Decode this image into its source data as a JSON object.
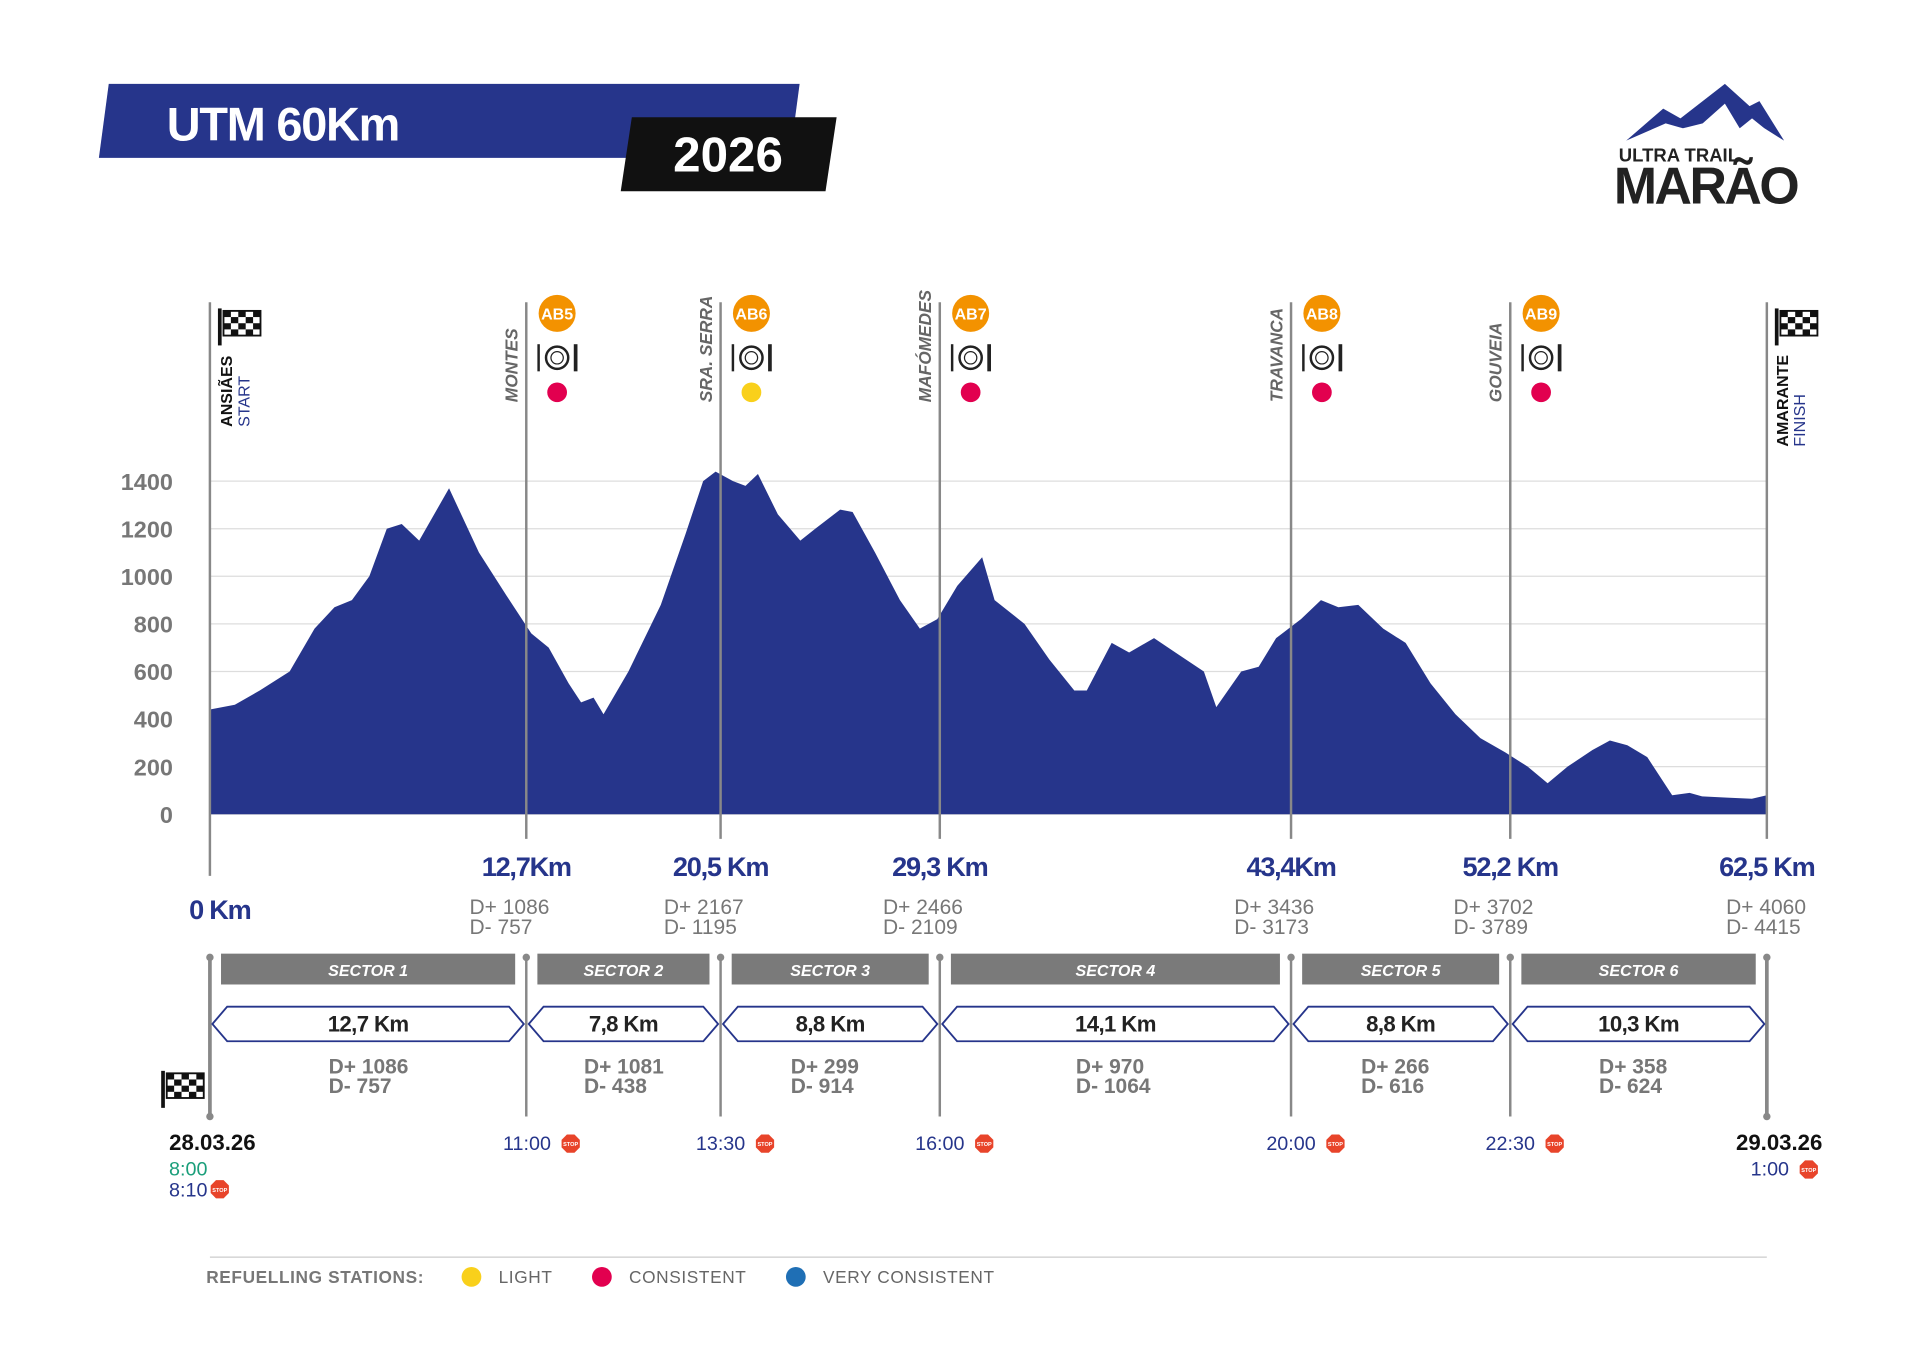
{
  "header": {
    "title": "UTM 60Km",
    "year": "2026",
    "logo_top": "ULTRA TRAIL",
    "logo_bottom": "MARÃO"
  },
  "chart_data": {
    "type": "area",
    "color": "#26358b",
    "x": [
      0,
      1.0,
      2.0,
      3.2,
      4.2,
      5.0,
      5.7,
      6.4,
      7.1,
      7.7,
      8.4,
      9.6,
      10.8,
      11.9,
      12.9,
      13.6,
      14.4,
      14.9,
      15.4,
      15.8,
      16.8,
      18.1,
      19.1,
      19.8,
      20.3,
      21.0,
      21.5,
      22.0,
      22.8,
      23.7,
      24.3,
      25.3,
      25.8,
      26.7,
      27.7,
      28.5,
      29.2,
      30.0,
      31.0,
      31.5,
      32.7,
      33.7,
      34.7,
      35.2,
      36.2,
      36.9,
      37.9,
      38.9,
      39.9,
      40.4,
      41.4,
      42.1,
      42.8,
      43.8,
      44.6,
      45.3,
      46.1,
      47.1,
      48.0,
      49.0,
      50.0,
      51.0,
      52.0,
      52.9,
      53.7,
      54.5,
      55.5,
      56.2,
      56.9,
      57.7,
      58.7,
      59.4,
      59.9,
      60.9,
      61.9,
      62.5
    ],
    "values": [
      440,
      460,
      520,
      600,
      780,
      870,
      900,
      1000,
      1200,
      1220,
      1150,
      1370,
      1100,
      920,
      760,
      700,
      550,
      470,
      490,
      420,
      600,
      880,
      1180,
      1400,
      1440,
      1400,
      1380,
      1430,
      1260,
      1150,
      1200,
      1280,
      1270,
      1100,
      900,
      780,
      820,
      960,
      1080,
      900,
      800,
      650,
      520,
      520,
      720,
      680,
      740,
      670,
      600,
      450,
      600,
      620,
      740,
      820,
      900,
      870,
      880,
      780,
      720,
      550,
      420,
      320,
      260,
      200,
      130,
      200,
      270,
      310,
      290,
      240,
      80,
      90,
      75,
      70,
      65,
      80
    ],
    "xlim": [
      0,
      62.5
    ],
    "ylim": [
      0,
      1500
    ],
    "yticks": [
      0,
      200,
      400,
      600,
      800,
      1000,
      1200,
      1400
    ],
    "grid": true,
    "start": {
      "km": 0,
      "label": "0 Km",
      "name": "ANSIÃES",
      "sub": "START",
      "date": "28.03.26",
      "time_start": "8:00",
      "time_cutoff": "8:10"
    },
    "finish": {
      "km": 62.5,
      "label": "62,5 Km",
      "name": "AMARANTE",
      "sub": "FINISH",
      "d_plus": "D+ 4060",
      "d_minus": "D- 4415",
      "date": "29.03.26",
      "time_cutoff": "1:00"
    },
    "checkpoints": [
      {
        "km": 12.7,
        "label": "12,7Km",
        "name": "MONTES",
        "station": "AB5",
        "dot_color": "#e2004f",
        "d_plus": "D+ 1086",
        "d_minus": "D- 757",
        "time": "11:00"
      },
      {
        "km": 20.5,
        "label": "20,5 Km",
        "name": "SRA. SERRA",
        "station": "AB6",
        "dot_color": "#f9d01b",
        "d_plus": "D+ 2167",
        "d_minus": "D- 1195",
        "time": "13:30"
      },
      {
        "km": 29.3,
        "label": "29,3 Km",
        "name": "MAFÓMEDES",
        "station": "AB7",
        "dot_color": "#e2004f",
        "d_plus": "D+ 2466",
        "d_minus": "D- 2109",
        "time": "16:00"
      },
      {
        "km": 43.4,
        "label": "43,4Km",
        "name": "TRAVANCA",
        "station": "AB8",
        "dot_color": "#e2004f",
        "d_plus": "D+ 3436",
        "d_minus": "D- 3173",
        "time": "20:00"
      },
      {
        "km": 52.2,
        "label": "52,2 Km",
        "name": "GOUVEIA",
        "station": "AB9",
        "dot_color": "#e2004f",
        "d_plus": "D+ 3702",
        "d_minus": "D- 3789",
        "time": "22:30"
      }
    ],
    "sectors": [
      {
        "name": "SECTOR 1",
        "distance": "12,7 Km",
        "d_plus": "D+ 1086",
        "d_minus": "D- 757"
      },
      {
        "name": "SECTOR 2",
        "distance": "7,8 Km",
        "d_plus": "D+ 1081",
        "d_minus": "D- 438"
      },
      {
        "name": "SECTOR 3",
        "distance": "8,8 Km",
        "d_plus": "D+ 299",
        "d_minus": "D- 914"
      },
      {
        "name": "SECTOR 4",
        "distance": "14,1 Km",
        "d_plus": "D+ 970",
        "d_minus": "D- 1064"
      },
      {
        "name": "SECTOR 5",
        "distance": "8,8 Km",
        "d_plus": "D+ 266",
        "d_minus": "D- 616"
      },
      {
        "name": "SECTOR 6",
        "distance": "10,3 Km",
        "d_plus": "D+ 358",
        "d_minus": "D- 624"
      }
    ],
    "stop_icon": "STOP",
    "legend": {
      "title": "REFUELLING STATIONS:",
      "items": [
        {
          "label": "LIGHT",
          "color": "#f9d01b"
        },
        {
          "label": "CONSISTENT",
          "color": "#e2004f"
        },
        {
          "label": "VERY CONSISTENT",
          "color": "#1f6fb5"
        }
      ]
    }
  }
}
